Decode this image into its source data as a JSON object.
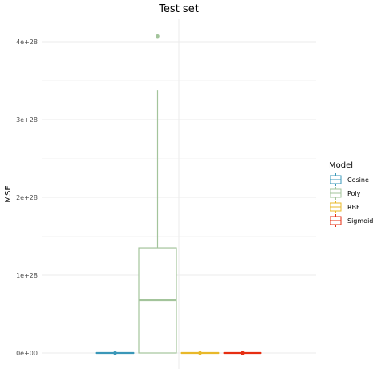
{
  "chart_data": {
    "type": "box",
    "title": "Test set",
    "xlabel": "",
    "ylabel": "MSE",
    "ylim": [
      -4e+27,
      4.2e+28
    ],
    "y_ticks": [
      {
        "value": 0,
        "label": "0e+00"
      },
      {
        "value": 1e+28,
        "label": "1e+28"
      },
      {
        "value": 2e+28,
        "label": "2e+28"
      },
      {
        "value": 3e+28,
        "label": "3e+28"
      },
      {
        "value": 4e+28,
        "label": "4e+28"
      }
    ],
    "grid": true,
    "legend": {
      "title": "Model",
      "position": "right"
    },
    "series": [
      {
        "name": "Cosine",
        "color": "#3a97b8",
        "min": 0,
        "q1": 0,
        "median": 0,
        "q3": 0,
        "max": 0,
        "outliers": []
      },
      {
        "name": "Poly",
        "color": "#a3c49b",
        "min": 0,
        "q1": 0,
        "median": 6.8e+27,
        "q3": 1.35e+28,
        "max": 3.38e+28,
        "outliers": [
          4.07e+28
        ]
      },
      {
        "name": "RBF",
        "color": "#e8b82a",
        "min": 0,
        "q1": 0,
        "median": 0,
        "q3": 0,
        "max": 0,
        "outliers": []
      },
      {
        "name": "Sigmoid",
        "color": "#e62e12",
        "min": 0,
        "q1": 0,
        "median": 0,
        "q3": 0,
        "max": 0,
        "outliers": []
      }
    ]
  }
}
